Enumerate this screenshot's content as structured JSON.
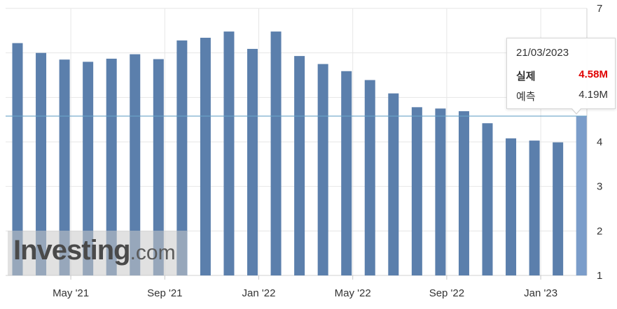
{
  "chart_data": {
    "type": "bar",
    "categories": [
      "03/2021",
      "04/2021",
      "05/2021",
      "06/2021",
      "07/2021",
      "08/2021",
      "09/2021",
      "10/2021",
      "11/2021",
      "12/2021",
      "01/2022",
      "02/2022",
      "03/2022",
      "04/2022",
      "05/2022",
      "06/2022",
      "07/2022",
      "08/2022",
      "09/2022",
      "10/2022",
      "11/2022",
      "12/2022",
      "01/2023",
      "02/2023",
      "03/2023"
    ],
    "values": [
      6.22,
      6.0,
      5.85,
      5.8,
      5.87,
      5.97,
      5.86,
      6.28,
      6.34,
      6.48,
      6.09,
      6.48,
      5.93,
      5.75,
      5.59,
      5.39,
      5.09,
      4.78,
      4.75,
      4.69,
      4.42,
      4.08,
      4.03,
      3.99,
      4.58
    ],
    "highlight_index": 24,
    "ylim": [
      1,
      7
    ],
    "yticks": [
      1,
      2,
      3,
      4,
      5,
      6,
      7
    ],
    "ytick_labels": [
      "1",
      "2",
      "3",
      "4",
      "",
      "",
      "7"
    ],
    "xtick_labels": [
      {
        "label": "May '21",
        "index": 2
      },
      {
        "label": "Sep '21",
        "index": 6
      },
      {
        "label": "Jan '22",
        "index": 10
      },
      {
        "label": "May '22",
        "index": 14
      },
      {
        "label": "Sep '22",
        "index": 18
      },
      {
        "label": "Jan '23",
        "index": 22
      }
    ],
    "reference_line": 4.58,
    "grid": true,
    "colors": {
      "bar": "#5b7fac",
      "bar_highlight": "#7b9dca",
      "reference_line": "#6aa3c8",
      "grid": "#e6e6e6"
    }
  },
  "tooltip": {
    "date": "21/03/2023",
    "actual_label": "실제",
    "actual_value": "4.58M",
    "forecast_label": "예측",
    "forecast_value": "4.19M"
  },
  "watermark": {
    "brand": "Investing",
    "suffix": ".com"
  }
}
